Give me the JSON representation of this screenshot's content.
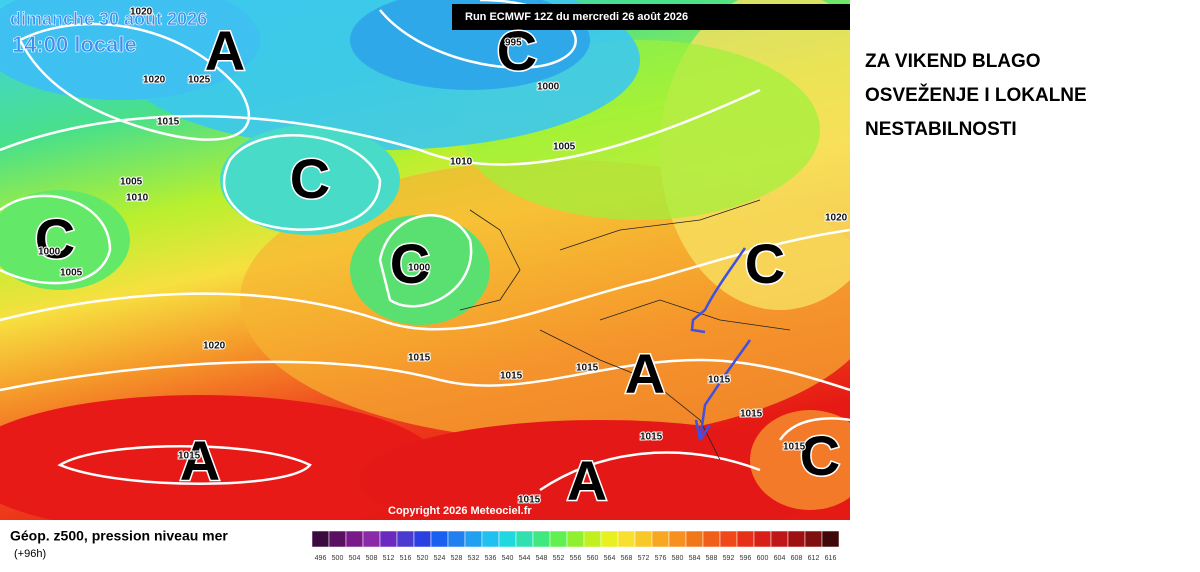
{
  "header": {
    "date": "dimanche 30 août 2026",
    "time": "14:00 locale",
    "run": "Run ECMWF 12Z du mercredi 26 août 2026"
  },
  "headline": [
    "ZA VIKEND BLAGO",
    "OSVEŽENJE I LOKALNE",
    "NESTABILNOSTI"
  ],
  "map": {
    "systems": [
      "A",
      "C",
      "C",
      "C",
      "C",
      "C",
      "A",
      "A",
      "A",
      "C"
    ],
    "isobar_labels": [
      1020,
      1020,
      1025,
      1015,
      995,
      1000,
      1005,
      1010,
      1005,
      1010,
      1000,
      1005,
      1000,
      1020,
      1015,
      1015,
      1015,
      1015,
      1015,
      1015,
      1015,
      1015,
      1020,
      1015
    ],
    "copyright": "Copyright 2026 Meteociel.fr"
  },
  "legend": {
    "title": "Géop. z500, pression niveau mer",
    "lead": "(+96h)",
    "scale": [
      496,
      500,
      504,
      508,
      512,
      516,
      520,
      524,
      528,
      532,
      536,
      540,
      544,
      548,
      552,
      556,
      560,
      564,
      568,
      572,
      576,
      580,
      584,
      588,
      592,
      596,
      600,
      604,
      608,
      612,
      616
    ]
  }
}
